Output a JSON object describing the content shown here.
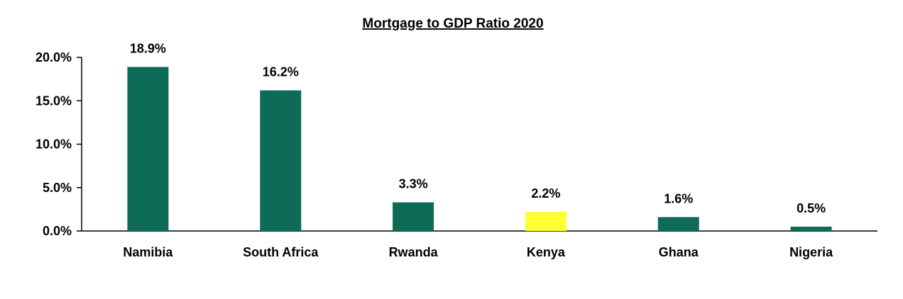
{
  "chart_data": {
    "type": "bar",
    "title": "Mortgage to GDP Ratio 2020",
    "xlabel": "",
    "ylabel": "",
    "categories": [
      "Namibia",
      "South Africa",
      "Rwanda",
      "Kenya",
      "Ghana",
      "Nigeria"
    ],
    "values": [
      18.9,
      16.2,
      3.3,
      2.2,
      1.6,
      0.5
    ],
    "data_labels": [
      "18.9%",
      "16.2%",
      "3.3%",
      "2.2%",
      "1.6%",
      "0.5%"
    ],
    "ylim": [
      0,
      20
    ],
    "y_ticks": [
      0,
      5,
      10,
      15,
      20
    ],
    "y_tick_labels": [
      "0.0%",
      "5.0%",
      "10.0%",
      "15.0%",
      "20.0%"
    ],
    "grid": false,
    "legend": "none",
    "colors": {
      "default_bar": "#0e6b58",
      "highlight_bar": "#ffff33",
      "axis": "#000000",
      "text": "#000000"
    },
    "highlight_category": "Kenya"
  }
}
